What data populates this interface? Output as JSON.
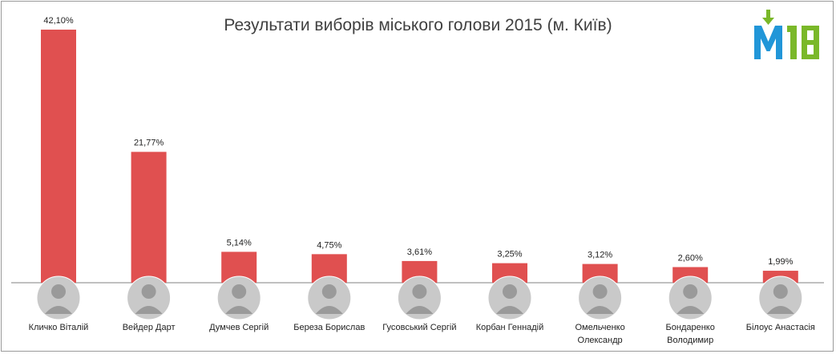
{
  "chart_data": {
    "type": "bar",
    "title": "Результати виборів міського голови 2015 (м. Київ)",
    "categories": [
      "Кличко Віталій",
      "Вейдер Дарт",
      "Думчев Сергій",
      "Береза Борислав",
      "Гусовський Сергій",
      "Корбан Геннадій",
      "Омельченко Олександр",
      "Бондаренко Володимир",
      "Білоус Анастасія"
    ],
    "category_lines": [
      [
        "Кличко Віталій"
      ],
      [
        "Вейдер Дарт"
      ],
      [
        "Думчев Сергій"
      ],
      [
        "Береза Борислав"
      ],
      [
        "Гусовський Сергій"
      ],
      [
        "Корбан Геннадій"
      ],
      [
        "Омельченко",
        "Олександр"
      ],
      [
        "Бондаренко",
        "Володимир"
      ],
      [
        "Білоус Анастасія"
      ]
    ],
    "values": [
      42.1,
      21.77,
      5.14,
      4.75,
      3.61,
      3.25,
      3.12,
      2.6,
      1.99
    ],
    "value_labels": [
      "42,10%",
      "21,77%",
      "5,14%",
      "4,75%",
      "3,61%",
      "3,25%",
      "3,12%",
      "2,60%",
      "1,99%"
    ],
    "unit": "%",
    "ylim": [
      0,
      42.1
    ],
    "grid": false,
    "legend": "none",
    "bar_color": "#e05050"
  },
  "logo": {
    "text": "M18",
    "blue": "#2196d8",
    "green": "#7ab829"
  },
  "colors": {
    "baseline": "#808080",
    "text": "#222222",
    "title": "#404040"
  }
}
